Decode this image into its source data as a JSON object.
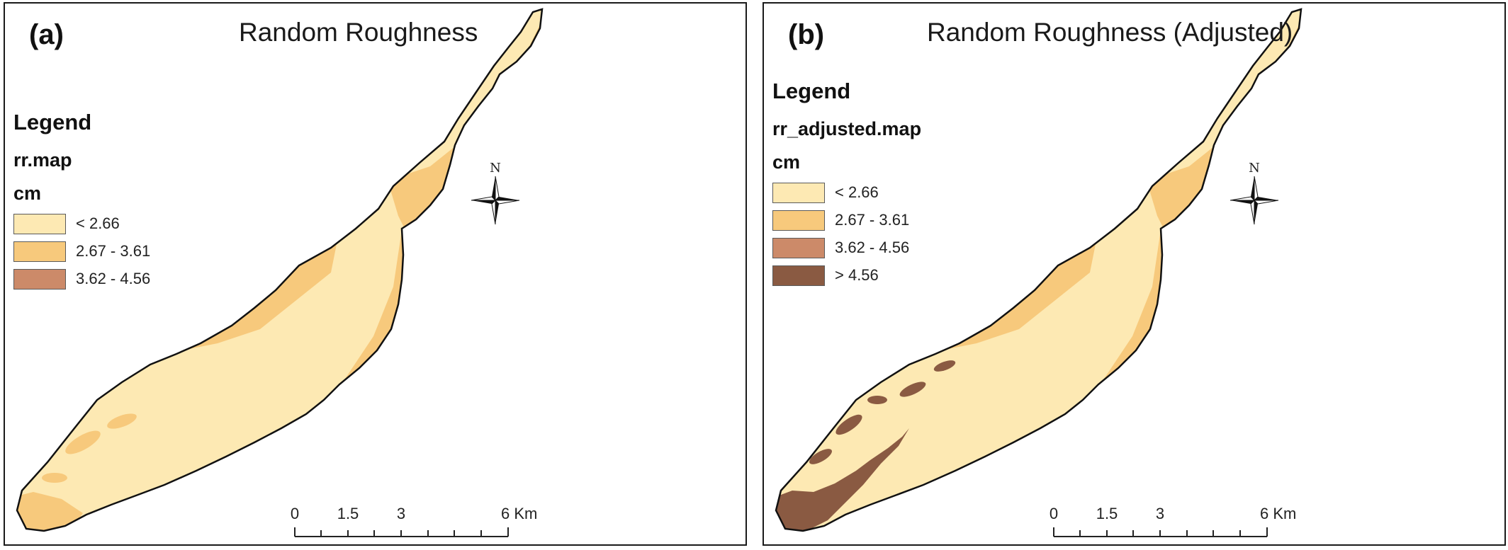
{
  "panels": [
    {
      "label": "(a)",
      "title": "Random Roughness",
      "legend": {
        "heading": "Legend",
        "layer": "rr.map",
        "unit": "cm",
        "items": [
          {
            "label": "< 2.66",
            "color": "#fde9b3"
          },
          {
            "label": "2.67 - 3.61",
            "color": "#f7c97c"
          },
          {
            "label": "3.62 - 4.56",
            "color": "#cc8a69"
          }
        ]
      },
      "north": "N",
      "scale": {
        "ticks": [
          "0",
          "1.5",
          "3",
          "6 Km"
        ]
      }
    },
    {
      "label": "(b)",
      "title": "Random Roughness (Adjusted)",
      "legend": {
        "heading": "Legend",
        "layer": "rr_adjusted.map",
        "unit": "cm",
        "items": [
          {
            "label": "< 2.66",
            "color": "#fde9b3"
          },
          {
            "label": "2.67 - 3.61",
            "color": "#f7c97c"
          },
          {
            "label": "3.62 - 4.56",
            "color": "#cc8a69"
          },
          {
            "label": "> 4.56",
            "color": "#8a5a42"
          }
        ]
      },
      "north": "N",
      "scale": {
        "ticks": [
          "0",
          "1.5",
          "3",
          "6 Km"
        ]
      }
    }
  ]
}
